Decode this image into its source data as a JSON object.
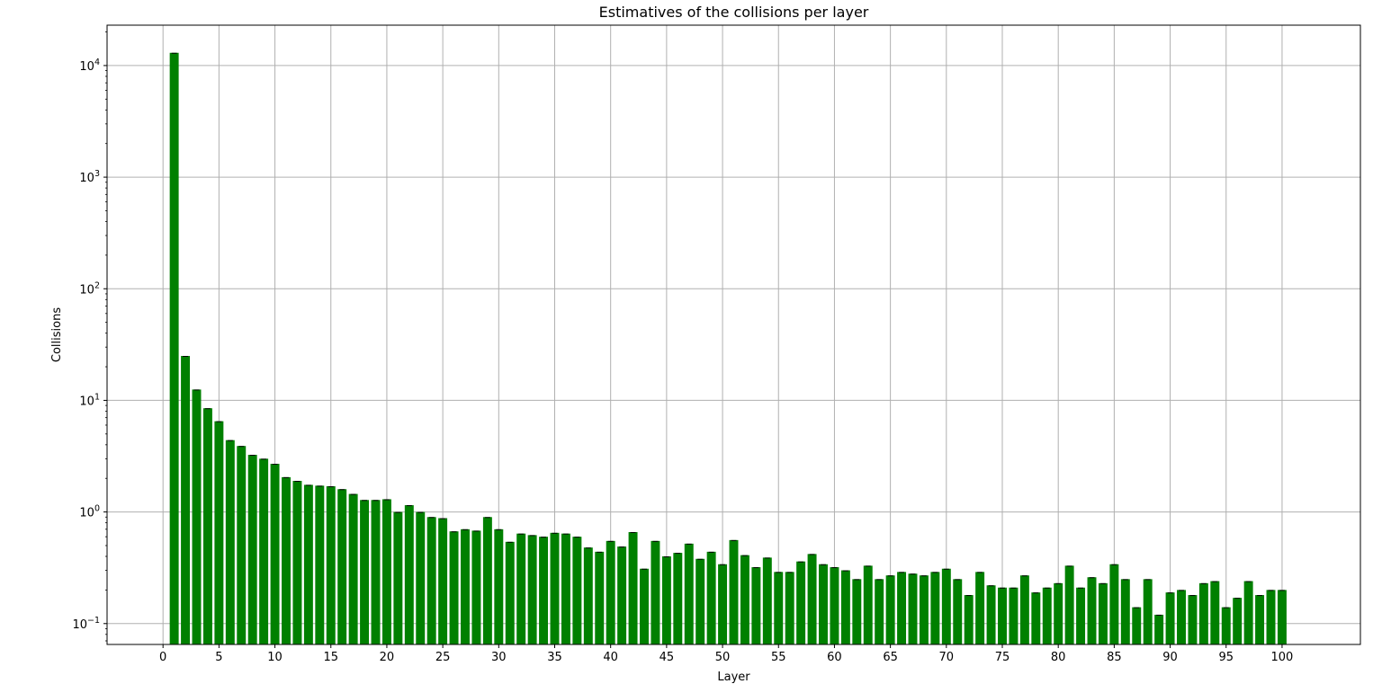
{
  "chart_data": {
    "type": "bar",
    "title": "Estimatives of the collisions per layer",
    "xlabel": "Layer",
    "ylabel": "Collisions",
    "yscale": "log",
    "ylim": [
      0.065,
      23000
    ],
    "xlim": [
      -5,
      107
    ],
    "grid": true,
    "bar_color": "#008000",
    "error_bars": true,
    "x_ticks": [
      0,
      5,
      10,
      15,
      20,
      25,
      30,
      35,
      40,
      45,
      50,
      55,
      60,
      65,
      70,
      75,
      80,
      85,
      90,
      95,
      100
    ],
    "y_ticks": [
      {
        "value": 0.1,
        "base": "10",
        "exp": "−1"
      },
      {
        "value": 1,
        "base": "10",
        "exp": "0"
      },
      {
        "value": 10,
        "base": "10",
        "exp": "1"
      },
      {
        "value": 100,
        "base": "10",
        "exp": "2"
      },
      {
        "value": 1000,
        "base": "10",
        "exp": "3"
      },
      {
        "value": 10000,
        "base": "10",
        "exp": "4"
      }
    ],
    "x": [
      1,
      2,
      3,
      4,
      5,
      6,
      7,
      8,
      9,
      10,
      11,
      12,
      13,
      14,
      15,
      16,
      17,
      18,
      19,
      20,
      21,
      22,
      23,
      24,
      25,
      26,
      27,
      28,
      29,
      30,
      31,
      32,
      33,
      34,
      35,
      36,
      37,
      38,
      39,
      40,
      41,
      42,
      43,
      44,
      45,
      46,
      47,
      48,
      49,
      50,
      51,
      52,
      53,
      54,
      55,
      56,
      57,
      58,
      59,
      60,
      61,
      62,
      63,
      64,
      65,
      66,
      67,
      68,
      69,
      70,
      71,
      72,
      73,
      74,
      75,
      76,
      77,
      78,
      79,
      80,
      81,
      82,
      83,
      84,
      85,
      86,
      87,
      88,
      89,
      90,
      91,
      92,
      93,
      94,
      95,
      96,
      97,
      98,
      99,
      100
    ],
    "values": [
      13000,
      25,
      12.5,
      8.5,
      6.5,
      4.4,
      3.9,
      3.25,
      3.0,
      2.7,
      2.05,
      1.9,
      1.75,
      1.72,
      1.7,
      1.6,
      1.45,
      1.28,
      1.28,
      1.3,
      1.0,
      1.15,
      1.0,
      0.9,
      0.88,
      0.67,
      0.7,
      0.68,
      0.9,
      0.7,
      0.54,
      0.64,
      0.62,
      0.6,
      0.65,
      0.64,
      0.6,
      0.48,
      0.44,
      0.55,
      0.49,
      0.66,
      0.31,
      0.55,
      0.4,
      0.43,
      0.52,
      0.38,
      0.44,
      0.34,
      0.56,
      0.41,
      0.32,
      0.39,
      0.29,
      0.29,
      0.36,
      0.42,
      0.34,
      0.32,
      0.3,
      0.25,
      0.33,
      0.25,
      0.27,
      0.29,
      0.28,
      0.27,
      0.29,
      0.31,
      0.25,
      0.18,
      0.29,
      0.22,
      0.21,
      0.21,
      0.27,
      0.19,
      0.21,
      0.23,
      0.33,
      0.21,
      0.26,
      0.23,
      0.34,
      0.25,
      0.14,
      0.25,
      0.12,
      0.19,
      0.2,
      0.18,
      0.23,
      0.24,
      0.14,
      0.17,
      0.24,
      0.18,
      0.2,
      0.2
    ]
  }
}
